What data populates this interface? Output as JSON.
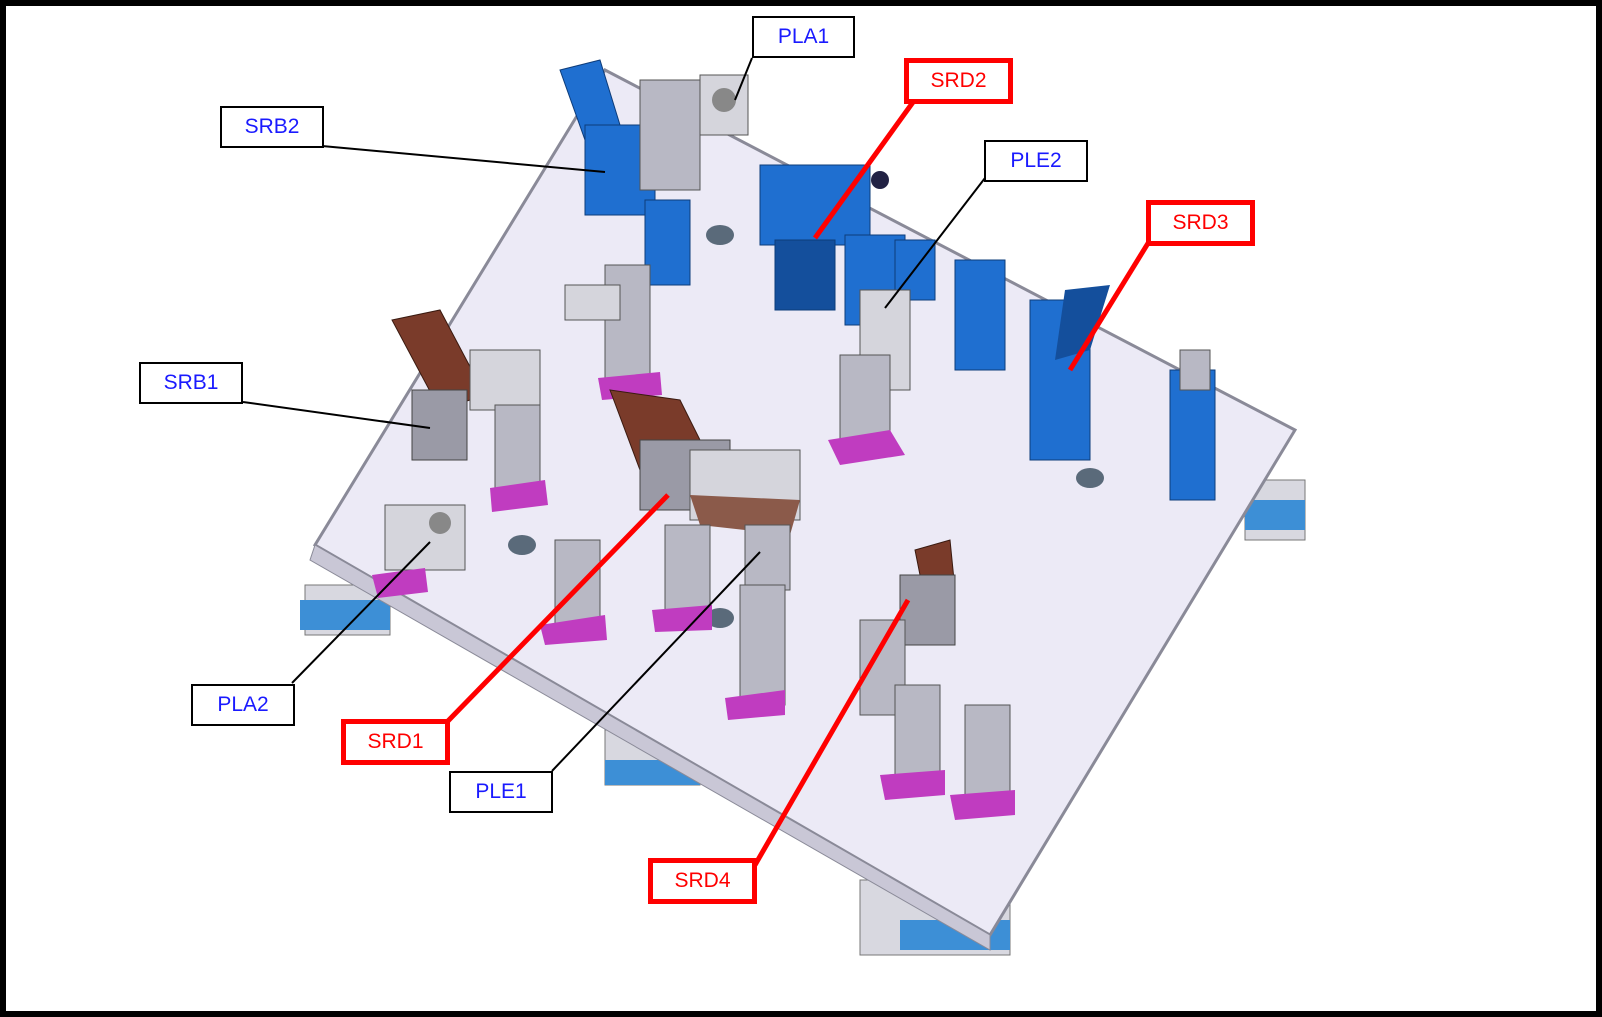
{
  "colors": {
    "plate": "#eceaf6",
    "plate_edge": "#8a8a98",
    "fixture_blue": "#1f6fd0",
    "fixture_blue_dark": "#144f9c",
    "fixture_grey": "#b8b8c4",
    "base_magenta": "#c03cc0",
    "clamp_brown": "#7a3b2a",
    "leader_black": "#000000",
    "leader_red": "#ff0000",
    "label_blue_text": "#1a1aff",
    "label_red_text": "#ff0000"
  },
  "labels": {
    "pla1": "PLA1",
    "srd2": "SRD2",
    "srb2": "SRB2",
    "ple2": "PLE2",
    "srd3": "SRD3",
    "srb1": "SRB1",
    "pla2": "PLA2",
    "srd1": "SRD1",
    "ple1": "PLE1",
    "srd4": "SRD4"
  }
}
